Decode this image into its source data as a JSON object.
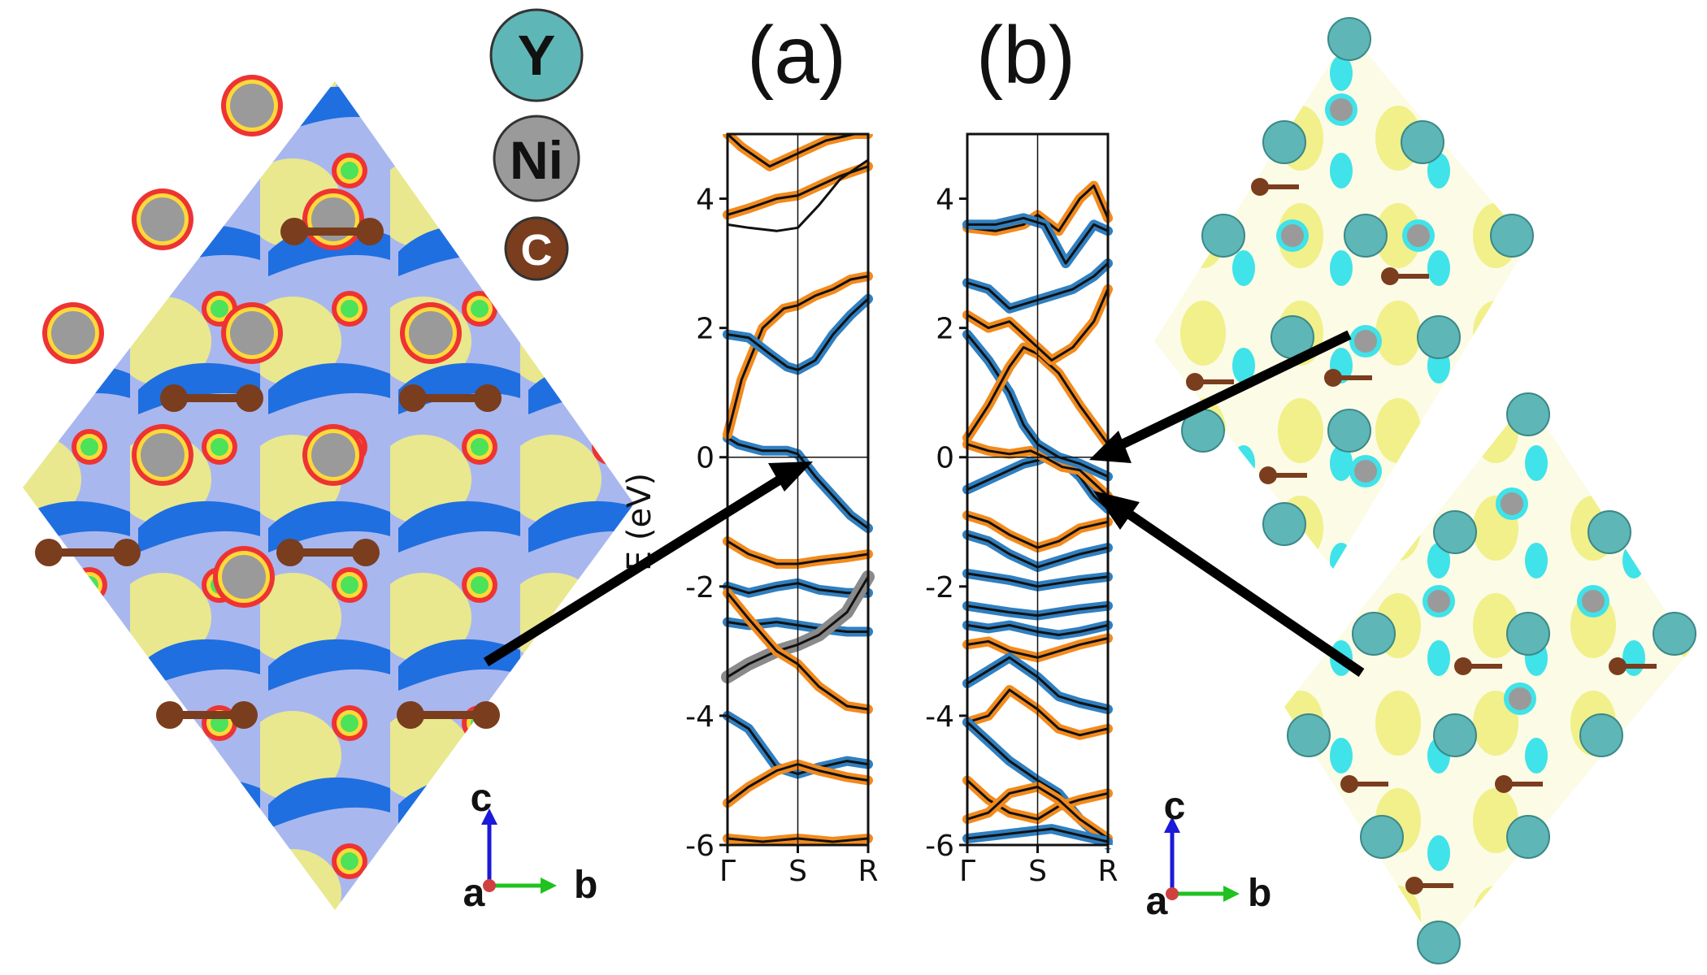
{
  "legend": {
    "atoms": [
      {
        "symbol": "Y",
        "color": "#5fb6b6"
      },
      {
        "symbol": "Ni",
        "color": "#9a9a9a"
      },
      {
        "symbol": "C",
        "color": "#7a3d1e"
      }
    ]
  },
  "axes_triad": {
    "a": "a",
    "b": "b",
    "c": "c"
  },
  "colors": {
    "orange": "#f28a1c",
    "blue": "#2f7fc0",
    "gray": "#8a8a8a",
    "line": "#111111"
  },
  "chart_data": [
    {
      "type": "line",
      "panel": "(a)",
      "ylabel": "E (eV)",
      "xticks": [
        "Γ",
        "S",
        "R"
      ],
      "yticks": [
        "4",
        "2",
        "0",
        "-2",
        "-4",
        "-6"
      ],
      "ylim": [
        -6,
        5
      ],
      "fermi_level": 0,
      "series": [
        {
          "x": [
            0,
            0.15,
            0.5,
            0.85,
            1,
            1.25,
            1.5,
            1.75,
            2
          ],
          "values": [
            0.3,
            0.2,
            0.1,
            0.1,
            0.05,
            -0.3,
            -0.6,
            -0.9,
            -1.1
          ],
          "color": "blue"
        },
        {
          "x": [
            0,
            0.2,
            0.5,
            0.8,
            1,
            1.25,
            1.5,
            1.75,
            2
          ],
          "values": [
            0.35,
            1.2,
            2.0,
            2.3,
            2.35,
            2.5,
            2.6,
            2.75,
            2.8
          ],
          "color": "orange"
        },
        {
          "x": [
            0,
            0.3,
            0.6,
            0.85,
            1,
            1.25,
            1.5,
            1.75,
            2
          ],
          "values": [
            1.9,
            1.85,
            1.6,
            1.4,
            1.35,
            1.5,
            1.9,
            2.2,
            2.45
          ],
          "color": "blue"
        },
        {
          "x": [
            0,
            0.3,
            0.7,
            1,
            1.3,
            1.6,
            2
          ],
          "values": [
            3.75,
            3.85,
            4.0,
            4.05,
            4.2,
            4.35,
            4.5
          ],
          "color": "orange"
        },
        {
          "x": [
            0,
            0.3,
            0.7,
            1,
            1.3,
            1.6,
            2
          ],
          "values": [
            3.6,
            3.55,
            3.5,
            3.55,
            3.9,
            4.3,
            4.6
          ],
          "color": "line"
        },
        {
          "x": [
            0,
            0.2,
            0.6,
            1,
            1.4,
            1.8,
            2
          ],
          "values": [
            5.0,
            4.8,
            4.5,
            4.7,
            4.9,
            5.0,
            5.0
          ],
          "color": "orange"
        },
        {
          "x": [
            0,
            0.3,
            0.7,
            1,
            1.3,
            1.7,
            2
          ],
          "values": [
            -1.3,
            -1.5,
            -1.65,
            -1.65,
            -1.6,
            -1.55,
            -1.5
          ],
          "color": "orange"
        },
        {
          "x": [
            0,
            0.3,
            0.7,
            1,
            1.3,
            1.7,
            2
          ],
          "values": [
            -2.0,
            -2.1,
            -2.0,
            -1.95,
            -2.05,
            -2.1,
            -2.1
          ],
          "color": "blue"
        },
        {
          "x": [
            0,
            0.3,
            0.7,
            1,
            1.3,
            1.7,
            2
          ],
          "values": [
            -2.55,
            -2.6,
            -2.55,
            -2.6,
            -2.65,
            -2.7,
            -2.7
          ],
          "color": "blue"
        },
        {
          "x": [
            0,
            0.3,
            0.7,
            1,
            1.3,
            1.7,
            2
          ],
          "values": [
            -3.4,
            -3.2,
            -3.0,
            -2.9,
            -2.75,
            -2.4,
            -1.85
          ],
          "color": "gray"
        },
        {
          "x": [
            0,
            0.3,
            0.7,
            1,
            1.3,
            1.7,
            2
          ],
          "values": [
            -2.1,
            -2.5,
            -3.0,
            -3.2,
            -3.55,
            -3.85,
            -3.9
          ],
          "color": "orange"
        },
        {
          "x": [
            0,
            0.3,
            0.7,
            1,
            1.3,
            1.7,
            2
          ],
          "values": [
            -4.0,
            -4.2,
            -4.8,
            -4.9,
            -4.8,
            -4.7,
            -4.75
          ],
          "color": "blue"
        },
        {
          "x": [
            0,
            0.3,
            0.7,
            1,
            1.3,
            1.7,
            2
          ],
          "values": [
            -5.35,
            -5.1,
            -4.85,
            -4.75,
            -4.85,
            -4.95,
            -5.0
          ],
          "color": "orange"
        },
        {
          "x": [
            0,
            0.5,
            1,
            1.5,
            2
          ],
          "values": [
            -5.9,
            -5.95,
            -5.9,
            -5.95,
            -5.9
          ],
          "color": "orange"
        }
      ]
    },
    {
      "type": "line",
      "panel": "(b)",
      "ylabel": "",
      "xticks": [
        "Γ",
        "S",
        "R"
      ],
      "yticks": [
        "4",
        "2",
        "0",
        "-2",
        "-4",
        "-6"
      ],
      "ylim": [
        -6,
        5
      ],
      "fermi_level": 0,
      "series": [
        {
          "x": [
            0,
            0.4,
            0.8,
            1,
            1.2,
            1.4,
            1.6,
            1.8,
            2
          ],
          "values": [
            -0.5,
            -0.3,
            -0.1,
            -0.05,
            0.05,
            -0.1,
            -0.3,
            -0.6,
            -0.8
          ],
          "color": "blue"
        },
        {
          "x": [
            0,
            0.3,
            0.6,
            0.9,
            1.1,
            1.35,
            1.6,
            1.8,
            2
          ],
          "values": [
            0.2,
            0.1,
            0.05,
            0.1,
            0.0,
            -0.15,
            -0.2,
            -0.4,
            -0.6
          ],
          "color": "orange"
        },
        {
          "x": [
            0,
            0.3,
            0.6,
            0.8,
            1,
            1.3,
            1.6,
            2
          ],
          "values": [
            1.9,
            1.5,
            1.0,
            0.5,
            0.2,
            0.0,
            -0.1,
            -0.3
          ],
          "color": "blue"
        },
        {
          "x": [
            0,
            0.3,
            0.6,
            0.8,
            1,
            1.3,
            1.6,
            2
          ],
          "values": [
            0.3,
            0.8,
            1.4,
            1.7,
            1.6,
            1.3,
            0.8,
            0.2
          ],
          "color": "orange"
        },
        {
          "x": [
            0,
            0.3,
            0.6,
            0.9,
            1.2,
            1.5,
            1.8,
            2
          ],
          "values": [
            2.2,
            2.0,
            2.1,
            1.8,
            1.5,
            1.7,
            2.1,
            2.6
          ],
          "color": "orange"
        },
        {
          "x": [
            0,
            0.3,
            0.6,
            0.9,
            1.2,
            1.5,
            1.8,
            2
          ],
          "values": [
            2.7,
            2.6,
            2.3,
            2.4,
            2.5,
            2.6,
            2.8,
            3.0
          ],
          "color": "blue"
        },
        {
          "x": [
            0,
            0.4,
            0.8,
            1,
            1.3,
            1.6,
            1.8,
            2
          ],
          "values": [
            3.55,
            3.5,
            3.6,
            3.75,
            3.5,
            4.0,
            4.2,
            3.7
          ],
          "color": "orange"
        },
        {
          "x": [
            0,
            0.4,
            0.8,
            1.1,
            1.4,
            1.6,
            1.8,
            2
          ],
          "values": [
            3.6,
            3.6,
            3.7,
            3.6,
            3.0,
            3.3,
            3.6,
            3.5
          ],
          "color": "blue"
        },
        {
          "x": [
            0,
            0.3,
            0.6,
            1,
            1.3,
            1.6,
            2
          ],
          "values": [
            -0.9,
            -1.0,
            -1.2,
            -1.4,
            -1.3,
            -1.1,
            -1.0
          ],
          "color": "orange"
        },
        {
          "x": [
            0,
            0.3,
            0.6,
            1,
            1.3,
            1.6,
            2
          ],
          "values": [
            -1.2,
            -1.3,
            -1.5,
            -1.7,
            -1.6,
            -1.5,
            -1.4
          ],
          "color": "blue"
        },
        {
          "x": [
            0,
            0.3,
            0.6,
            1,
            1.3,
            1.6,
            2
          ],
          "values": [
            -1.8,
            -1.85,
            -1.9,
            -2.0,
            -1.95,
            -1.9,
            -1.85
          ],
          "color": "blue"
        },
        {
          "x": [
            0,
            0.3,
            0.6,
            1,
            1.3,
            1.6,
            2
          ],
          "values": [
            -2.3,
            -2.35,
            -2.4,
            -2.45,
            -2.4,
            -2.35,
            -2.3
          ],
          "color": "blue"
        },
        {
          "x": [
            0,
            0.3,
            0.6,
            1,
            1.3,
            1.6,
            2
          ],
          "values": [
            -2.6,
            -2.65,
            -2.6,
            -2.7,
            -2.75,
            -2.7,
            -2.6
          ],
          "color": "blue"
        },
        {
          "x": [
            0,
            0.3,
            0.6,
            1,
            1.3,
            1.6,
            2
          ],
          "values": [
            -2.9,
            -2.85,
            -3.0,
            -3.1,
            -3.0,
            -2.9,
            -2.8
          ],
          "color": "orange"
        },
        {
          "x": [
            0,
            0.3,
            0.6,
            1,
            1.3,
            1.6,
            2
          ],
          "values": [
            -3.5,
            -3.3,
            -3.1,
            -3.4,
            -3.7,
            -3.8,
            -3.9
          ],
          "color": "blue"
        },
        {
          "x": [
            0,
            0.3,
            0.6,
            1,
            1.3,
            1.6,
            2
          ],
          "values": [
            -4.1,
            -4.0,
            -3.6,
            -3.9,
            -4.2,
            -4.3,
            -4.2
          ],
          "color": "orange"
        },
        {
          "x": [
            0,
            0.3,
            0.6,
            1,
            1.3,
            1.6,
            2
          ],
          "values": [
            -4.1,
            -4.4,
            -4.7,
            -5.0,
            -5.2,
            -5.6,
            -6.0
          ],
          "color": "blue"
        },
        {
          "x": [
            0,
            0.3,
            0.6,
            1,
            1.3,
            1.6,
            2
          ],
          "values": [
            -5.0,
            -5.3,
            -5.5,
            -5.6,
            -5.4,
            -5.3,
            -5.2
          ],
          "color": "orange"
        },
        {
          "x": [
            0,
            0.3,
            0.6,
            1,
            1.3,
            1.6,
            2
          ],
          "values": [
            -5.6,
            -5.5,
            -5.2,
            -5.1,
            -5.3,
            -5.6,
            -5.9
          ],
          "color": "orange"
        },
        {
          "x": [
            0,
            0.4,
            0.8,
            1.2,
            1.6,
            2
          ],
          "values": [
            -5.9,
            -5.85,
            -5.8,
            -5.75,
            -5.85,
            -5.95
          ],
          "color": "blue"
        }
      ]
    }
  ]
}
